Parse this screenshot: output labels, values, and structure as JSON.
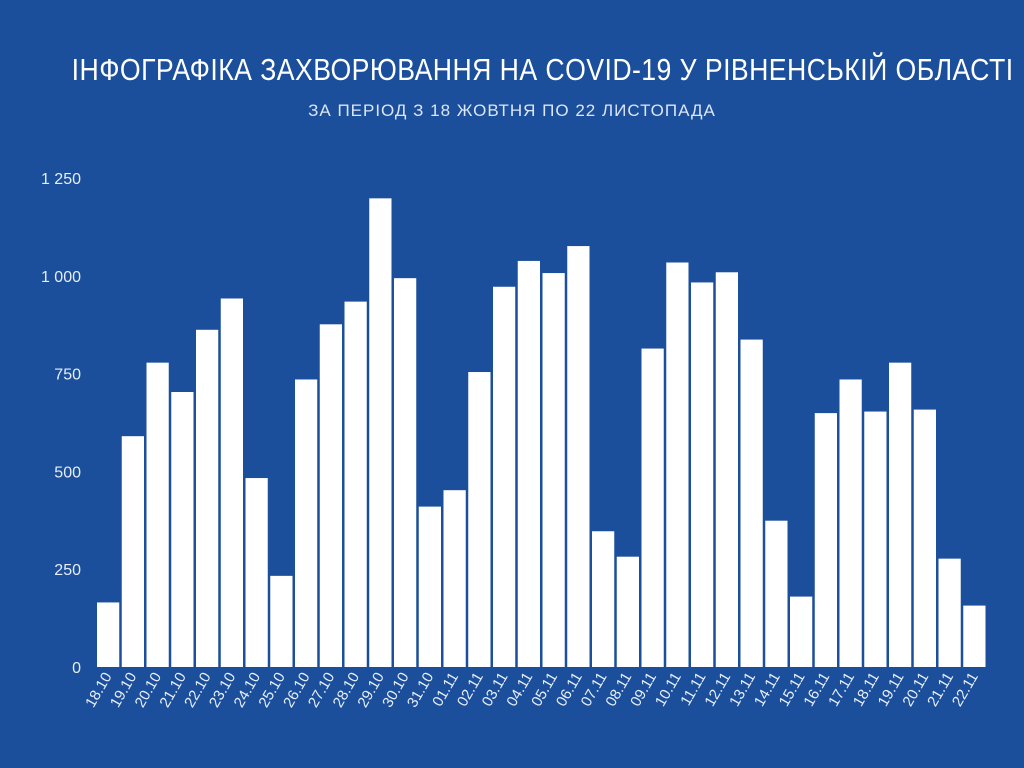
{
  "chart_data": {
    "type": "bar",
    "title": "ІНФОГРАФІКА ЗАХВОРЮВАННЯ НА COVID-19 У РІВНЕНСЬКІЙ ОБЛАСТІ",
    "subtitle": "ЗА ПЕРІОД З 18 ЖОВТНЯ ПО 22 ЛИСТОПАДА",
    "xlabel": "",
    "ylabel": "",
    "ylim": [
      0,
      1250
    ],
    "yticks": [
      0,
      250,
      500,
      750,
      1000,
      1250
    ],
    "ytick_labels": [
      "0",
      "250",
      "500",
      "750",
      "1 000",
      "1 250"
    ],
    "grid": false,
    "bar_color": "#ffffff",
    "background_color": "#1b4e9b",
    "categories": [
      "18.10",
      "19.10",
      "20.10",
      "21.10",
      "22.10",
      "23.10",
      "24.10",
      "25.10",
      "26.10",
      "27.10",
      "28.10",
      "29.10",
      "30.10",
      "31.10",
      "01.11",
      "02.11",
      "03.11",
      "04.11",
      "05.11",
      "06.11",
      "07.11",
      "08.11",
      "09.11",
      "10.11",
      "11.11",
      "12.11",
      "13.11",
      "14.11",
      "15.11",
      "16.11",
      "17.11",
      "18.11",
      "19.11",
      "20.11",
      "21.11",
      "22.11"
    ],
    "values": [
      165,
      590,
      778,
      703,
      862,
      942,
      483,
      233,
      735,
      876,
      934,
      1198,
      994,
      410,
      452,
      754,
      972,
      1038,
      1007,
      1076,
      347,
      282,
      814,
      1034,
      983,
      1009,
      837,
      374,
      180,
      649,
      735,
      653,
      778,
      658,
      277,
      157
    ]
  }
}
